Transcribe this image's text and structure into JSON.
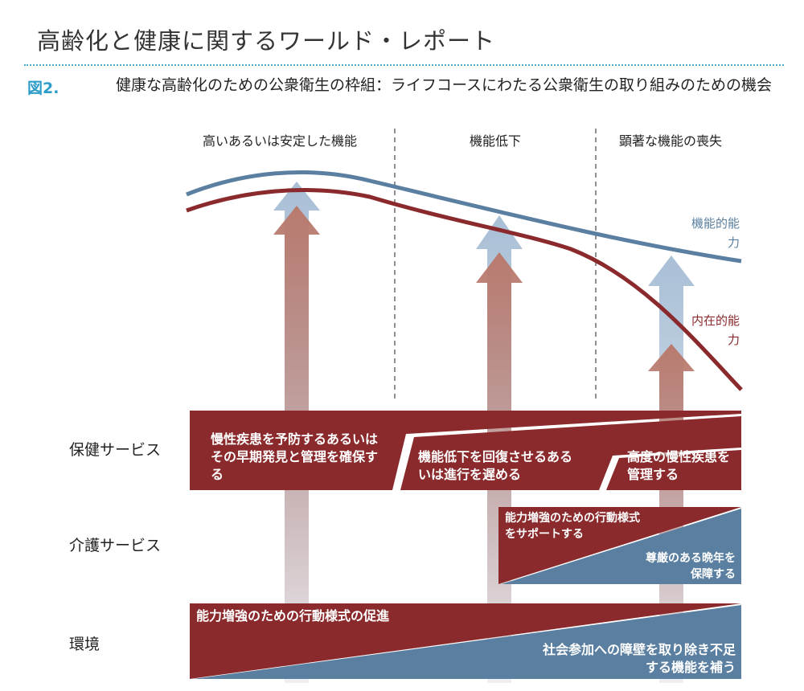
{
  "header": {
    "report_title": "高齢化と健康に関するワールド・レポート",
    "figure_label": "図2.",
    "caption": "健康な高齢化のための公衆衛生の枠組：ライフコースにわたる公衆衛生の取り組みのための機会"
  },
  "phases": [
    "高いあるいは安定した機能",
    "機能低下",
    "顕著な機能の喪失"
  ],
  "curves": {
    "functional_label": "機能的能力",
    "intrinsic_label": "内在的能力"
  },
  "rows": {
    "health": "保健サービス",
    "care": "介護サービス",
    "environment": "環境"
  },
  "health_boxes": [
    "慢性疾患を予防するあるいはその早期発見と管理を確保する",
    "機能低下を回復させるあるいは進行を遅める",
    "高度の慢性疾患を管理する"
  ],
  "care": {
    "upper": "能力増強のための行動様式をサポートする",
    "lower": "尊厳のある晩年を保障する"
  },
  "environment": {
    "upper": "能力増強のための行動様式の促進",
    "lower": "社会参加への障壁を取り除き不足する機能を補う"
  },
  "colors": {
    "dark_red": "#8a2a2c",
    "steel_blue": "#5a7fa0",
    "arrow_red": "#b97a6e",
    "arrow_blue": "#a9bfd6",
    "accent": "#2e9cc8"
  }
}
